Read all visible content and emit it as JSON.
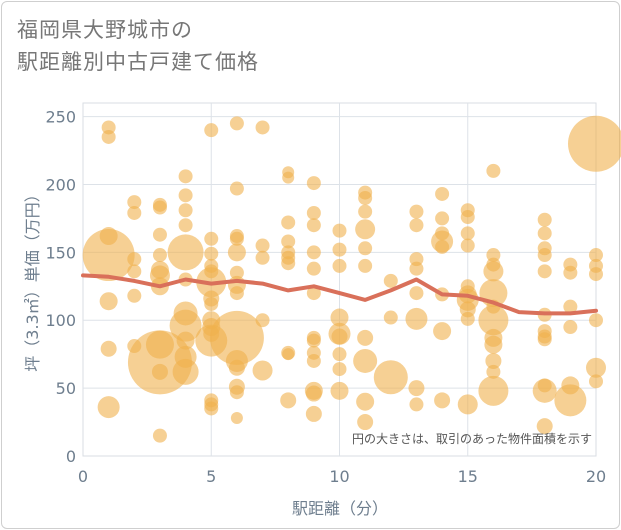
{
  "chart_data": {
    "type": "scatter",
    "title_line1": "福岡県大野城市の",
    "title_line2": "駅距離別中古戸建て価格",
    "xlabel": "駅距離（分）",
    "ylabel": "坪（3.3㎡）単価（万円）",
    "xlim": [
      0,
      20
    ],
    "ylim": [
      0,
      260
    ],
    "x_ticks": [
      0,
      5,
      10,
      15,
      20
    ],
    "y_ticks": [
      0,
      50,
      100,
      150,
      200,
      250
    ],
    "note": "円の大きさは、取引のあった物件面積を示す",
    "bubble_color": "#f0b04c",
    "line_color": "#d9705a",
    "points": [
      {
        "x": 1,
        "y": 242,
        "r": 7
      },
      {
        "x": 1,
        "y": 235,
        "r": 7
      },
      {
        "x": 1,
        "y": 162,
        "r": 9
      },
      {
        "x": 1,
        "y": 148,
        "r": 26
      },
      {
        "x": 1,
        "y": 114,
        "r": 9
      },
      {
        "x": 1,
        "y": 79,
        "r": 8
      },
      {
        "x": 1,
        "y": 36,
        "r": 11
      },
      {
        "x": 2,
        "y": 187,
        "r": 7
      },
      {
        "x": 2,
        "y": 179,
        "r": 7
      },
      {
        "x": 2,
        "y": 145,
        "r": 7
      },
      {
        "x": 2,
        "y": 136,
        "r": 7
      },
      {
        "x": 2,
        "y": 118,
        "r": 7
      },
      {
        "x": 2,
        "y": 81,
        "r": 7
      },
      {
        "x": 3,
        "y": 185,
        "r": 7
      },
      {
        "x": 3,
        "y": 183,
        "r": 7
      },
      {
        "x": 3,
        "y": 163,
        "r": 7
      },
      {
        "x": 3,
        "y": 148,
        "r": 7
      },
      {
        "x": 3,
        "y": 137,
        "r": 9
      },
      {
        "x": 3,
        "y": 133,
        "r": 10
      },
      {
        "x": 3,
        "y": 125,
        "r": 9
      },
      {
        "x": 3,
        "y": 82,
        "r": 14
      },
      {
        "x": 3,
        "y": 69,
        "r": 32
      },
      {
        "x": 3,
        "y": 62,
        "r": 8
      },
      {
        "x": 3,
        "y": 15,
        "r": 7
      },
      {
        "x": 4,
        "y": 206,
        "r": 7
      },
      {
        "x": 4,
        "y": 192,
        "r": 7
      },
      {
        "x": 4,
        "y": 181,
        "r": 7
      },
      {
        "x": 4,
        "y": 170,
        "r": 7
      },
      {
        "x": 4,
        "y": 150,
        "r": 18
      },
      {
        "x": 4,
        "y": 130,
        "r": 7
      },
      {
        "x": 4,
        "y": 105,
        "r": 12
      },
      {
        "x": 4,
        "y": 96,
        "r": 16
      },
      {
        "x": 4,
        "y": 85,
        "r": 9
      },
      {
        "x": 4,
        "y": 73,
        "r": 11
      },
      {
        "x": 4,
        "y": 62,
        "r": 13
      },
      {
        "x": 5,
        "y": 240,
        "r": 7
      },
      {
        "x": 5,
        "y": 160,
        "r": 7
      },
      {
        "x": 5,
        "y": 149,
        "r": 7
      },
      {
        "x": 5,
        "y": 140,
        "r": 7
      },
      {
        "x": 5,
        "y": 136,
        "r": 7
      },
      {
        "x": 5,
        "y": 128,
        "r": 15
      },
      {
        "x": 5,
        "y": 116,
        "r": 8
      },
      {
        "x": 5,
        "y": 112,
        "r": 7
      },
      {
        "x": 5,
        "y": 100,
        "r": 9
      },
      {
        "x": 5,
        "y": 95,
        "r": 9
      },
      {
        "x": 5,
        "y": 90,
        "r": 8
      },
      {
        "x": 5,
        "y": 85,
        "r": 16
      },
      {
        "x": 5,
        "y": 41,
        "r": 7
      },
      {
        "x": 5,
        "y": 38,
        "r": 7
      },
      {
        "x": 5,
        "y": 35,
        "r": 7
      },
      {
        "x": 6,
        "y": 245,
        "r": 7
      },
      {
        "x": 6,
        "y": 197,
        "r": 7
      },
      {
        "x": 6,
        "y": 162,
        "r": 7
      },
      {
        "x": 6,
        "y": 160,
        "r": 7
      },
      {
        "x": 6,
        "y": 150,
        "r": 9
      },
      {
        "x": 6,
        "y": 135,
        "r": 7
      },
      {
        "x": 6,
        "y": 126,
        "r": 9
      },
      {
        "x": 6,
        "y": 120,
        "r": 7
      },
      {
        "x": 6,
        "y": 87,
        "r": 27
      },
      {
        "x": 6,
        "y": 70,
        "r": 11
      },
      {
        "x": 6,
        "y": 65,
        "r": 8
      },
      {
        "x": 6,
        "y": 51,
        "r": 8
      },
      {
        "x": 6,
        "y": 47,
        "r": 7
      },
      {
        "x": 6,
        "y": 28,
        "r": 6
      },
      {
        "x": 7,
        "y": 242,
        "r": 7
      },
      {
        "x": 7,
        "y": 155,
        "r": 7
      },
      {
        "x": 7,
        "y": 146,
        "r": 7
      },
      {
        "x": 7,
        "y": 100,
        "r": 7
      },
      {
        "x": 7,
        "y": 63,
        "r": 10
      },
      {
        "x": 8,
        "y": 209,
        "r": 6
      },
      {
        "x": 8,
        "y": 205,
        "r": 6
      },
      {
        "x": 8,
        "y": 172,
        "r": 7
      },
      {
        "x": 8,
        "y": 158,
        "r": 7
      },
      {
        "x": 8,
        "y": 150,
        "r": 7
      },
      {
        "x": 8,
        "y": 146,
        "r": 7
      },
      {
        "x": 8,
        "y": 142,
        "r": 7
      },
      {
        "x": 8,
        "y": 76,
        "r": 7
      },
      {
        "x": 8,
        "y": 75,
        "r": 6
      },
      {
        "x": 8,
        "y": 41,
        "r": 8
      },
      {
        "x": 9,
        "y": 201,
        "r": 7
      },
      {
        "x": 9,
        "y": 179,
        "r": 7
      },
      {
        "x": 9,
        "y": 170,
        "r": 7
      },
      {
        "x": 9,
        "y": 150,
        "r": 7
      },
      {
        "x": 9,
        "y": 138,
        "r": 7
      },
      {
        "x": 9,
        "y": 120,
        "r": 7
      },
      {
        "x": 9,
        "y": 87,
        "r": 7
      },
      {
        "x": 9,
        "y": 85,
        "r": 7
      },
      {
        "x": 9,
        "y": 76,
        "r": 7
      },
      {
        "x": 9,
        "y": 70,
        "r": 7
      },
      {
        "x": 9,
        "y": 48,
        "r": 9
      },
      {
        "x": 9,
        "y": 46,
        "r": 8
      },
      {
        "x": 9,
        "y": 31,
        "r": 8
      },
      {
        "x": 10,
        "y": 166,
        "r": 7
      },
      {
        "x": 10,
        "y": 152,
        "r": 7
      },
      {
        "x": 10,
        "y": 140,
        "r": 7
      },
      {
        "x": 10,
        "y": 102,
        "r": 9
      },
      {
        "x": 10,
        "y": 90,
        "r": 11
      },
      {
        "x": 10,
        "y": 88,
        "r": 8
      },
      {
        "x": 10,
        "y": 75,
        "r": 7
      },
      {
        "x": 10,
        "y": 64,
        "r": 7
      },
      {
        "x": 10,
        "y": 48,
        "r": 9
      },
      {
        "x": 11,
        "y": 194,
        "r": 7
      },
      {
        "x": 11,
        "y": 190,
        "r": 7
      },
      {
        "x": 11,
        "y": 180,
        "r": 7
      },
      {
        "x": 11,
        "y": 167,
        "r": 10
      },
      {
        "x": 11,
        "y": 153,
        "r": 7
      },
      {
        "x": 11,
        "y": 140,
        "r": 7
      },
      {
        "x": 11,
        "y": 87,
        "r": 8
      },
      {
        "x": 11,
        "y": 70,
        "r": 12
      },
      {
        "x": 11,
        "y": 40,
        "r": 9
      },
      {
        "x": 11,
        "y": 25,
        "r": 8
      },
      {
        "x": 12,
        "y": 129,
        "r": 7
      },
      {
        "x": 12,
        "y": 102,
        "r": 7
      },
      {
        "x": 12,
        "y": 58,
        "r": 17
      },
      {
        "x": 13,
        "y": 180,
        "r": 7
      },
      {
        "x": 13,
        "y": 170,
        "r": 7
      },
      {
        "x": 13,
        "y": 145,
        "r": 7
      },
      {
        "x": 13,
        "y": 138,
        "r": 7
      },
      {
        "x": 13,
        "y": 120,
        "r": 7
      },
      {
        "x": 13,
        "y": 101,
        "r": 11
      },
      {
        "x": 13,
        "y": 50,
        "r": 8
      },
      {
        "x": 13,
        "y": 38,
        "r": 7
      },
      {
        "x": 14,
        "y": 193,
        "r": 7
      },
      {
        "x": 14,
        "y": 175,
        "r": 7
      },
      {
        "x": 14,
        "y": 164,
        "r": 7
      },
      {
        "x": 14,
        "y": 158,
        "r": 11
      },
      {
        "x": 14,
        "y": 154,
        "r": 7
      },
      {
        "x": 14,
        "y": 119,
        "r": 7
      },
      {
        "x": 14,
        "y": 92,
        "r": 9
      },
      {
        "x": 14,
        "y": 41,
        "r": 8
      },
      {
        "x": 15,
        "y": 181,
        "r": 7
      },
      {
        "x": 15,
        "y": 176,
        "r": 7
      },
      {
        "x": 15,
        "y": 164,
        "r": 7
      },
      {
        "x": 15,
        "y": 155,
        "r": 7
      },
      {
        "x": 15,
        "y": 125,
        "r": 7
      },
      {
        "x": 15,
        "y": 119,
        "r": 9
      },
      {
        "x": 15,
        "y": 115,
        "r": 11
      },
      {
        "x": 15,
        "y": 108,
        "r": 8
      },
      {
        "x": 15,
        "y": 101,
        "r": 7
      },
      {
        "x": 15,
        "y": 38,
        "r": 10
      },
      {
        "x": 16,
        "y": 210,
        "r": 7
      },
      {
        "x": 16,
        "y": 148,
        "r": 7
      },
      {
        "x": 16,
        "y": 141,
        "r": 7
      },
      {
        "x": 16,
        "y": 136,
        "r": 10
      },
      {
        "x": 16,
        "y": 120,
        "r": 14
      },
      {
        "x": 16,
        "y": 110,
        "r": 7
      },
      {
        "x": 16,
        "y": 100,
        "r": 15
      },
      {
        "x": 16,
        "y": 87,
        "r": 9
      },
      {
        "x": 16,
        "y": 82,
        "r": 9
      },
      {
        "x": 16,
        "y": 70,
        "r": 8
      },
      {
        "x": 16,
        "y": 62,
        "r": 7
      },
      {
        "x": 16,
        "y": 48,
        "r": 15
      },
      {
        "x": 18,
        "y": 174,
        "r": 7
      },
      {
        "x": 18,
        "y": 164,
        "r": 7
      },
      {
        "x": 18,
        "y": 153,
        "r": 7
      },
      {
        "x": 18,
        "y": 148,
        "r": 7
      },
      {
        "x": 18,
        "y": 136,
        "r": 7
      },
      {
        "x": 18,
        "y": 104,
        "r": 7
      },
      {
        "x": 18,
        "y": 92,
        "r": 7
      },
      {
        "x": 18,
        "y": 88,
        "r": 7
      },
      {
        "x": 18,
        "y": 86,
        "r": 7
      },
      {
        "x": 18,
        "y": 52,
        "r": 7
      },
      {
        "x": 18,
        "y": 48,
        "r": 12
      },
      {
        "x": 18,
        "y": 22,
        "r": 8
      },
      {
        "x": 19,
        "y": 141,
        "r": 7
      },
      {
        "x": 19,
        "y": 135,
        "r": 7
      },
      {
        "x": 19,
        "y": 110,
        "r": 7
      },
      {
        "x": 19,
        "y": 95,
        "r": 7
      },
      {
        "x": 19,
        "y": 52,
        "r": 9
      },
      {
        "x": 19,
        "y": 41,
        "r": 16
      },
      {
        "x": 20,
        "y": 230,
        "r": 28
      },
      {
        "x": 20,
        "y": 148,
        "r": 7
      },
      {
        "x": 20,
        "y": 140,
        "r": 7
      },
      {
        "x": 20,
        "y": 134,
        "r": 7
      },
      {
        "x": 20,
        "y": 100,
        "r": 7
      },
      {
        "x": 20,
        "y": 65,
        "r": 10
      },
      {
        "x": 20,
        "y": 55,
        "r": 7
      }
    ],
    "trend": {
      "x": [
        0,
        1,
        2,
        3,
        4,
        5,
        6,
        7,
        8,
        9,
        10,
        11,
        12,
        13,
        14,
        15,
        16,
        17,
        18,
        19,
        20
      ],
      "y": [
        133,
        132,
        129,
        125,
        130,
        127,
        129,
        127,
        122,
        125,
        120,
        115,
        122,
        130,
        119,
        118,
        113,
        106,
        105,
        105,
        107
      ]
    }
  }
}
